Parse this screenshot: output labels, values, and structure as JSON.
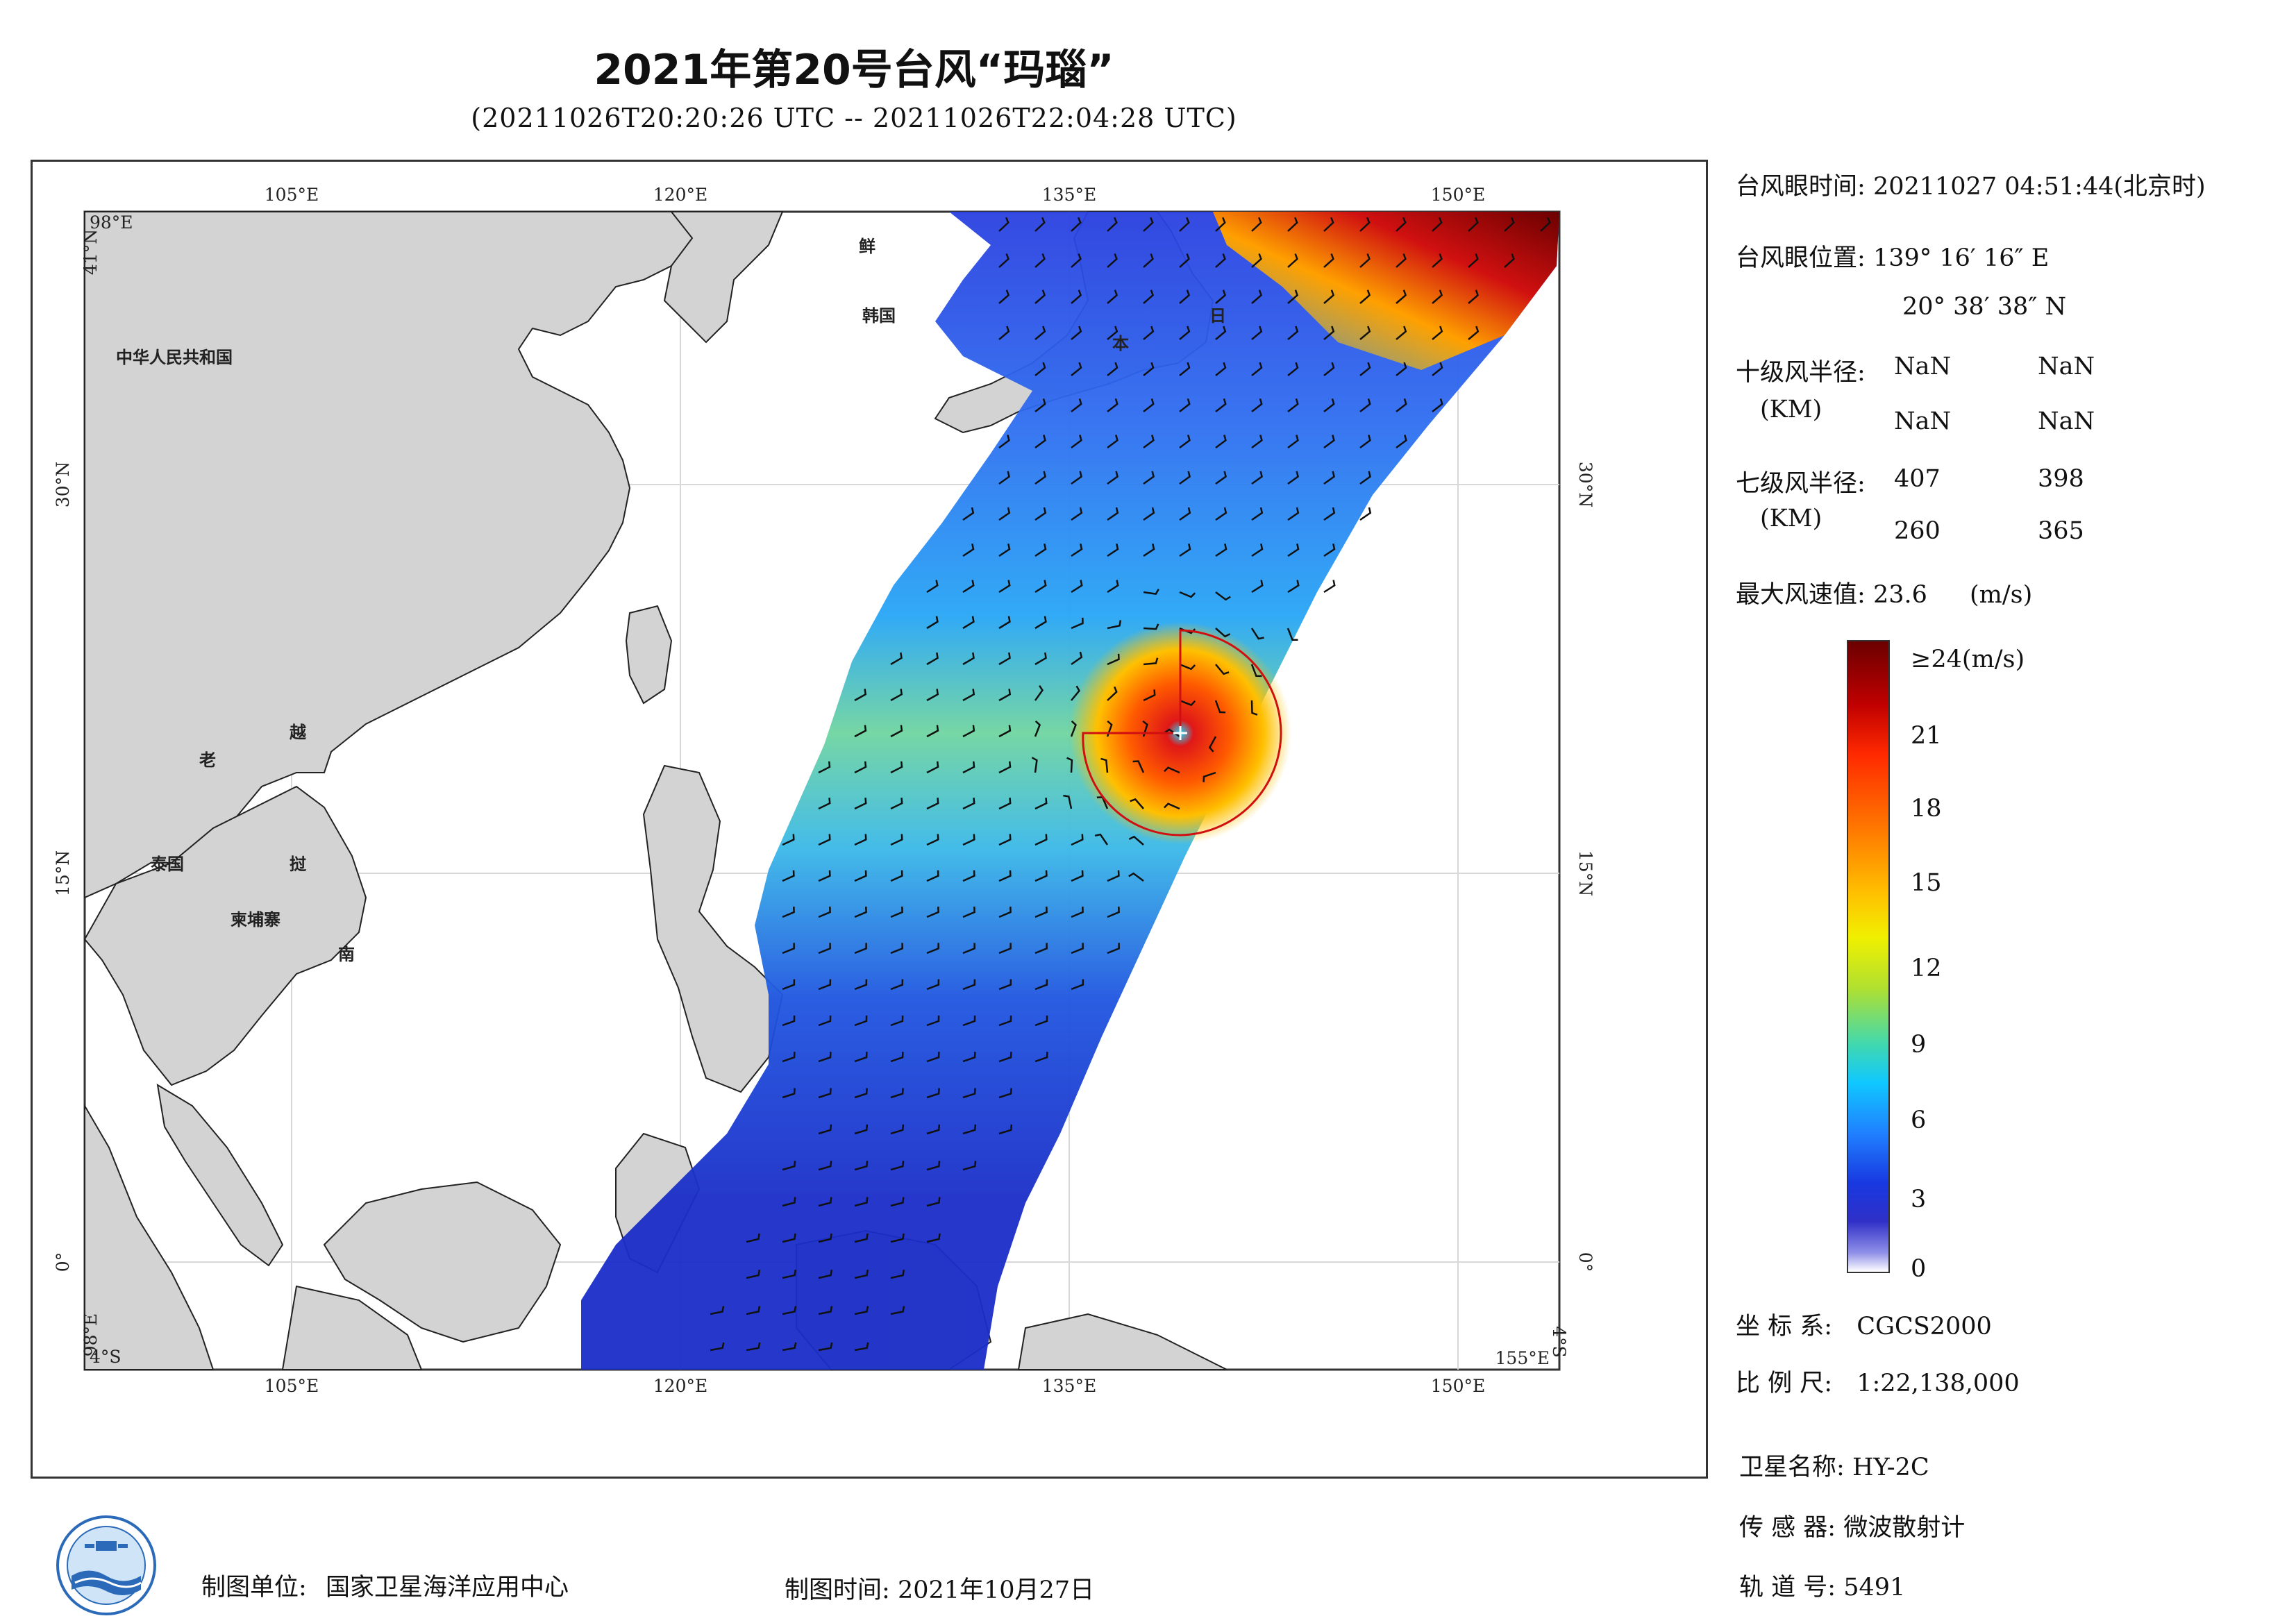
{
  "header": {
    "title": "2021年第20号台风“玛瑙”",
    "subtitle": "(20211026T20:20:26 UTC -- 20211026T22:04:28 UTC)"
  },
  "info": {
    "eye_time_label": "台风眼时间:",
    "eye_time_value": "20211027 04:51:44(北京时)",
    "eye_pos_label": "台风眼位置:",
    "eye_pos_lon": "139° 16′ 16″ E",
    "eye_pos_lat": "20° 38′ 38″ N",
    "r10_label": "十级风半径:",
    "r10_unit": "(KM)",
    "r10_values": [
      "NaN",
      "NaN",
      "NaN",
      "NaN"
    ],
    "r7_label": "七级风半径:",
    "r7_unit": "(KM)",
    "r7_values": [
      "407",
      "398",
      "260",
      "365"
    ],
    "max_wind_label": "最大风速值:",
    "max_wind_value": "23.6",
    "max_wind_unit": "(m/s)",
    "coord_label": "坐 标 系:",
    "coord_value": "CGCS2000",
    "scale_label": "比 例 尺:",
    "scale_value": "1:22,138,000",
    "satellite_label": "卫星名称:",
    "satellite_value": "HY-2C",
    "sensor_label": "传 感 器:",
    "sensor_value": "微波散射计",
    "orbit_label": "轨 道 号:",
    "orbit_value": "5491"
  },
  "colorbar": {
    "labels": [
      "≥24(m/s)",
      "21",
      "18",
      "15",
      "12",
      "9",
      "6",
      "3",
      "0"
    ],
    "colors": [
      "#6b0000",
      "#d01010",
      "#ff5a00",
      "#ffc000",
      "#f0f000",
      "#90e040",
      "#30d0b0",
      "#10c8ff",
      "#2080ff",
      "#1838e0",
      "#2020c0",
      "#8080e0",
      "#ffffff"
    ]
  },
  "map": {
    "lon_ticks": [
      "105°E",
      "120°E",
      "135°E",
      "150°E"
    ],
    "lat_ticks": [
      "30°N",
      "15°N",
      "0°"
    ],
    "corner_top_lon": "98°E",
    "corner_top_lat": "41°N",
    "corner_bottom_lon_left": "98°E",
    "corner_bottom_lat_left": "4°S",
    "corner_bottom_lon_right": "155°E",
    "corner_bottom_lat_right": "4°S",
    "country_labels": [
      "中华人民共和国",
      "鲜",
      "韩国",
      "日",
      "本",
      "老",
      "越",
      "泰国",
      "挝",
      "柬埔寨",
      "南"
    ]
  },
  "footer": {
    "maker_label": "制图单位:",
    "maker_value": "国家卫星海洋应用中心",
    "time_label": "制图时间:",
    "time_value": "2021年10月27日"
  }
}
